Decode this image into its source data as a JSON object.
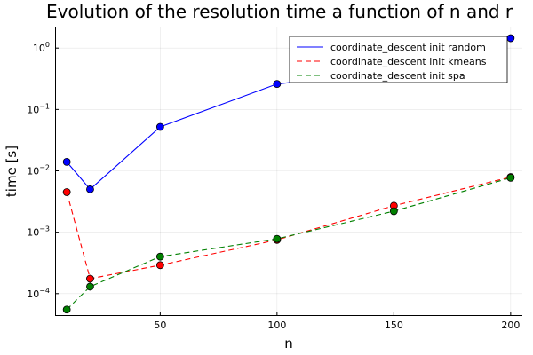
{
  "chart_data": {
    "type": "line",
    "title": "Evolution of the resolution time a function of n and r",
    "xlabel": "n",
    "ylabel": "time [s]",
    "xlim": [
      5,
      205
    ],
    "ylim_log10": [
      -4.35,
      0.35
    ],
    "yscale": "log",
    "x_ticks": [
      50,
      100,
      150,
      200
    ],
    "y_ticks": [
      {
        "exp": -4,
        "base": "10",
        "sup": "−4"
      },
      {
        "exp": -3,
        "base": "10",
        "sup": "−3"
      },
      {
        "exp": -2,
        "base": "10",
        "sup": "−2"
      },
      {
        "exp": -1,
        "base": "10",
        "sup": "−1"
      },
      {
        "exp": 0,
        "base": "10",
        "sup": "0"
      }
    ],
    "grid": true,
    "legend_position": "top-right",
    "x": [
      10,
      20,
      50,
      100,
      150,
      200
    ],
    "series": [
      {
        "name": "coordinate_descent init random",
        "color": "#0000ff",
        "dash": "solid",
        "values": [
          0.014,
          0.005,
          0.052,
          0.26,
          0.43,
          1.45
        ]
      },
      {
        "name": "coordinate_descent init kmeans",
        "color": "#ff0000",
        "dash": "dashed",
        "values": [
          0.0045,
          0.000175,
          0.00029,
          0.00075,
          0.0027,
          0.0079
        ]
      },
      {
        "name": "coordinate_descent init spa",
        "color": "#008000",
        "dash": "dashed",
        "values": [
          5.5e-05,
          0.00013,
          0.0004,
          0.00078,
          0.0022,
          0.0077
        ]
      }
    ]
  }
}
